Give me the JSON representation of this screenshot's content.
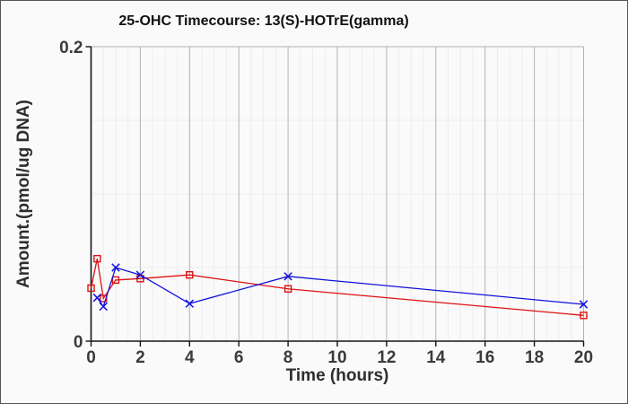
{
  "chart_data": {
    "type": "line",
    "title": "25-OHC Timecourse: 13(S)-HOTrE(gamma)",
    "xlabel": "Time (hours)",
    "ylabel": "Amount.(pmol/ug DNA)",
    "xlim": [
      0,
      20
    ],
    "ylim": [
      0,
      0.2
    ],
    "xticks": [
      0,
      2,
      4,
      6,
      8,
      10,
      12,
      14,
      16,
      18,
      20
    ],
    "yticks": [
      0,
      0.2
    ],
    "ytick_labels": [
      "0",
      "0.2"
    ],
    "minor_x_step": 0.5,
    "minor_y_step": 0.05,
    "grid": "major+minor",
    "legend_position": "none",
    "series": [
      {
        "name": "red-open-square-series",
        "marker": "open-square",
        "color": "#dd1111",
        "points": [
          [
            0,
            0.036
          ],
          [
            0.25,
            0.056
          ],
          [
            0.5,
            0.029
          ],
          [
            1,
            0.0415
          ],
          [
            2,
            0.0425
          ],
          [
            4,
            0.045
          ],
          [
            8,
            0.0355
          ],
          [
            20,
            0.0175
          ]
        ]
      },
      {
        "name": "blue-x-cross-series",
        "marker": "x-cross",
        "color": "#1111dd",
        "points": [
          [
            0.25,
            0.0295
          ],
          [
            0.5,
            0.0235
          ],
          [
            1,
            0.05
          ],
          [
            2,
            0.045
          ],
          [
            4,
            0.0255
          ],
          [
            8,
            0.044
          ],
          [
            20,
            0.025
          ]
        ]
      }
    ],
    "colors": {
      "background": "#fafafa",
      "figure_border": "#56565a",
      "axis": "#141414",
      "grid_major": "#b3b3b6",
      "grid_minor": "#ededed",
      "tick_text": "#3b3b3b"
    }
  }
}
